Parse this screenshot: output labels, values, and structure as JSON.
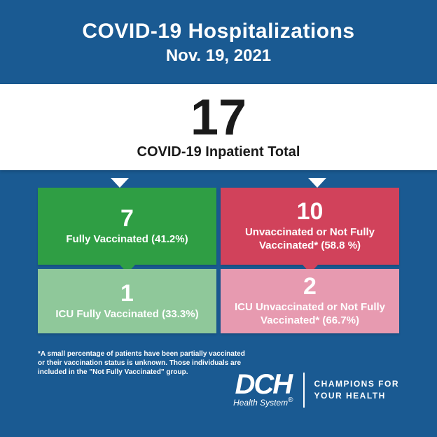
{
  "header": {
    "title": "COVID-19 Hospitalizations",
    "date": "Nov. 19, 2021"
  },
  "total": {
    "value": "17",
    "label": "COVID-19 Inpatient Total"
  },
  "colors": {
    "background": "#1a5a92",
    "band": "#ffffff",
    "green_dark": "#2f9e44",
    "green_light": "#8fc89a",
    "red_dark": "#d1425b",
    "pink_light": "#e79ab0",
    "text_on_tile": "#ffffff"
  },
  "grid": {
    "tl": {
      "value": "7",
      "label": "Fully Vaccinated (41.2%)",
      "bg": "#2f9e44",
      "pointer_down_color": "#2f9e44"
    },
    "tr": {
      "value": "10",
      "label": "Unvaccinated or Not Fully Vaccinated* (58.8 %)",
      "bg": "#d1425b",
      "pointer_down_color": "#d1425b"
    },
    "bl": {
      "value": "1",
      "label": "ICU Fully Vaccinated (33.3%)",
      "bg": "#8fc89a"
    },
    "br": {
      "value": "2",
      "label": "ICU Unvaccinated or Not Fully Vaccinated* (66.7%)",
      "bg": "#e79ab0"
    }
  },
  "footnote": "*A small percentage of patients have been partially vaccinated or their vaccination status is unknown. Those individuals are included in the \"Not Fully Vaccinated\" group.",
  "logo": {
    "main": "DCH",
    "sub": "Health System",
    "reg": "®",
    "tagline_l1": "CHAMPIONS FOR",
    "tagline_l2": "YOUR HEALTH"
  }
}
